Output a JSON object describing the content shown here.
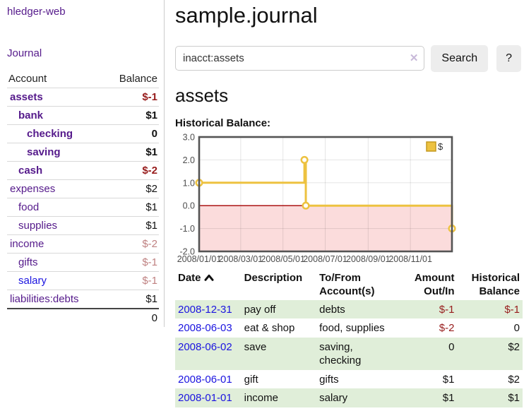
{
  "sidebar": {
    "app_title": "hledger-web",
    "journal_link": "Journal",
    "table": {
      "account_header": "Account",
      "balance_header": "Balance",
      "accounts": [
        {
          "name": "assets",
          "indent": 0,
          "bold": true,
          "balance": "$-1",
          "neg": "strong",
          "bold_balance": true
        },
        {
          "name": "bank",
          "indent": 1,
          "bold": true,
          "balance": "$1",
          "neg": "none",
          "bold_balance": true
        },
        {
          "name": "checking",
          "indent": 2,
          "bold": true,
          "balance": "0",
          "neg": "none",
          "bold_balance": true
        },
        {
          "name": "saving",
          "indent": 2,
          "bold": true,
          "balance": "$1",
          "neg": "none",
          "bold_balance": true
        },
        {
          "name": "cash",
          "indent": 1,
          "bold": true,
          "balance": "$-2",
          "neg": "strong",
          "bold_balance": true
        },
        {
          "name": "expenses",
          "indent": 0,
          "bold": false,
          "balance": "$2",
          "neg": "none",
          "bold_balance": false
        },
        {
          "name": "food",
          "indent": 1,
          "bold": false,
          "balance": "$1",
          "neg": "none",
          "bold_balance": false
        },
        {
          "name": "supplies",
          "indent": 1,
          "bold": false,
          "balance": "$1",
          "neg": "none",
          "bold_balance": false
        },
        {
          "name": "income",
          "indent": 0,
          "bold": false,
          "balance": "$-2",
          "neg": "muted",
          "bold_balance": false
        },
        {
          "name": "gifts",
          "indent": 1,
          "bold": false,
          "balance": "$-1",
          "neg": "muted",
          "bold_balance": false
        },
        {
          "name": "salary",
          "indent": 1,
          "bold": false,
          "balance": "$-1",
          "neg": "muted",
          "bold_balance": false,
          "unvisited": true
        },
        {
          "name": "liabilities:debts",
          "indent": 0,
          "bold": false,
          "balance": "$1",
          "neg": "none",
          "bold_balance": false
        }
      ],
      "total": "0"
    }
  },
  "header": {
    "title": "sample.journal"
  },
  "search": {
    "value": "inacct:assets",
    "clear_icon": "✕",
    "button": "Search",
    "help_button": "?"
  },
  "account_page": {
    "heading": "assets",
    "chart_label": "Historical Balance:"
  },
  "chart_data": {
    "type": "line",
    "title": "Historical Balance",
    "step": true,
    "series": [
      {
        "name": "$",
        "color": "#EDC240",
        "points": [
          [
            "2008-01-01",
            1
          ],
          [
            "2008-06-01",
            2
          ],
          [
            "2008-06-03",
            0
          ],
          [
            "2008-12-31",
            -1
          ]
        ]
      }
    ],
    "x_ticks": [
      "2008/01/01",
      "2008/03/01",
      "2008/05/01",
      "2008/07/01",
      "2008/09/01",
      "2008/11/01"
    ],
    "y_ticks": [
      3.0,
      2.0,
      1.0,
      0.0,
      -1.0,
      -2.0
    ],
    "xlim": [
      "2008-01-01",
      "2008-12-31"
    ],
    "ylim": [
      -2,
      3
    ],
    "grid": true,
    "legend_position": "top-right",
    "negative_region_color": "#fbdcdc",
    "zero_line_color": "#a40000",
    "border_color": "#545454"
  },
  "register": {
    "columns": [
      {
        "lines": [
          "Date"
        ],
        "align": "left",
        "sorted": "asc"
      },
      {
        "lines": [
          "Description"
        ],
        "align": "left"
      },
      {
        "lines": [
          "To/From",
          "Account(s)"
        ],
        "align": "left"
      },
      {
        "lines": [
          "Amount",
          "Out/In"
        ],
        "align": "right"
      },
      {
        "lines": [
          "Historical",
          "Balance"
        ],
        "align": "right"
      }
    ],
    "rows": [
      {
        "date": "2008-12-31",
        "description": "pay off",
        "accounts": "debts",
        "amount": "$-1",
        "amount_negative": true,
        "balance": "$-1",
        "balance_negative": true
      },
      {
        "date": "2008-06-03",
        "description": "eat & shop",
        "accounts": "food, supplies",
        "amount": "$-2",
        "amount_negative": true,
        "balance": "0",
        "balance_negative": false
      },
      {
        "date": "2008-06-02",
        "description": "save",
        "accounts": "saving, checking",
        "amount": "0",
        "amount_negative": false,
        "balance": "$2",
        "balance_negative": false
      },
      {
        "date": "2008-06-01",
        "description": "gift",
        "accounts": "gifts",
        "amount": "$1",
        "amount_negative": false,
        "balance": "$2",
        "balance_negative": false
      },
      {
        "date": "2008-01-01",
        "description": "income",
        "accounts": "salary",
        "amount": "$1",
        "amount_negative": false,
        "balance": "$1",
        "balance_negative": false
      }
    ]
  }
}
